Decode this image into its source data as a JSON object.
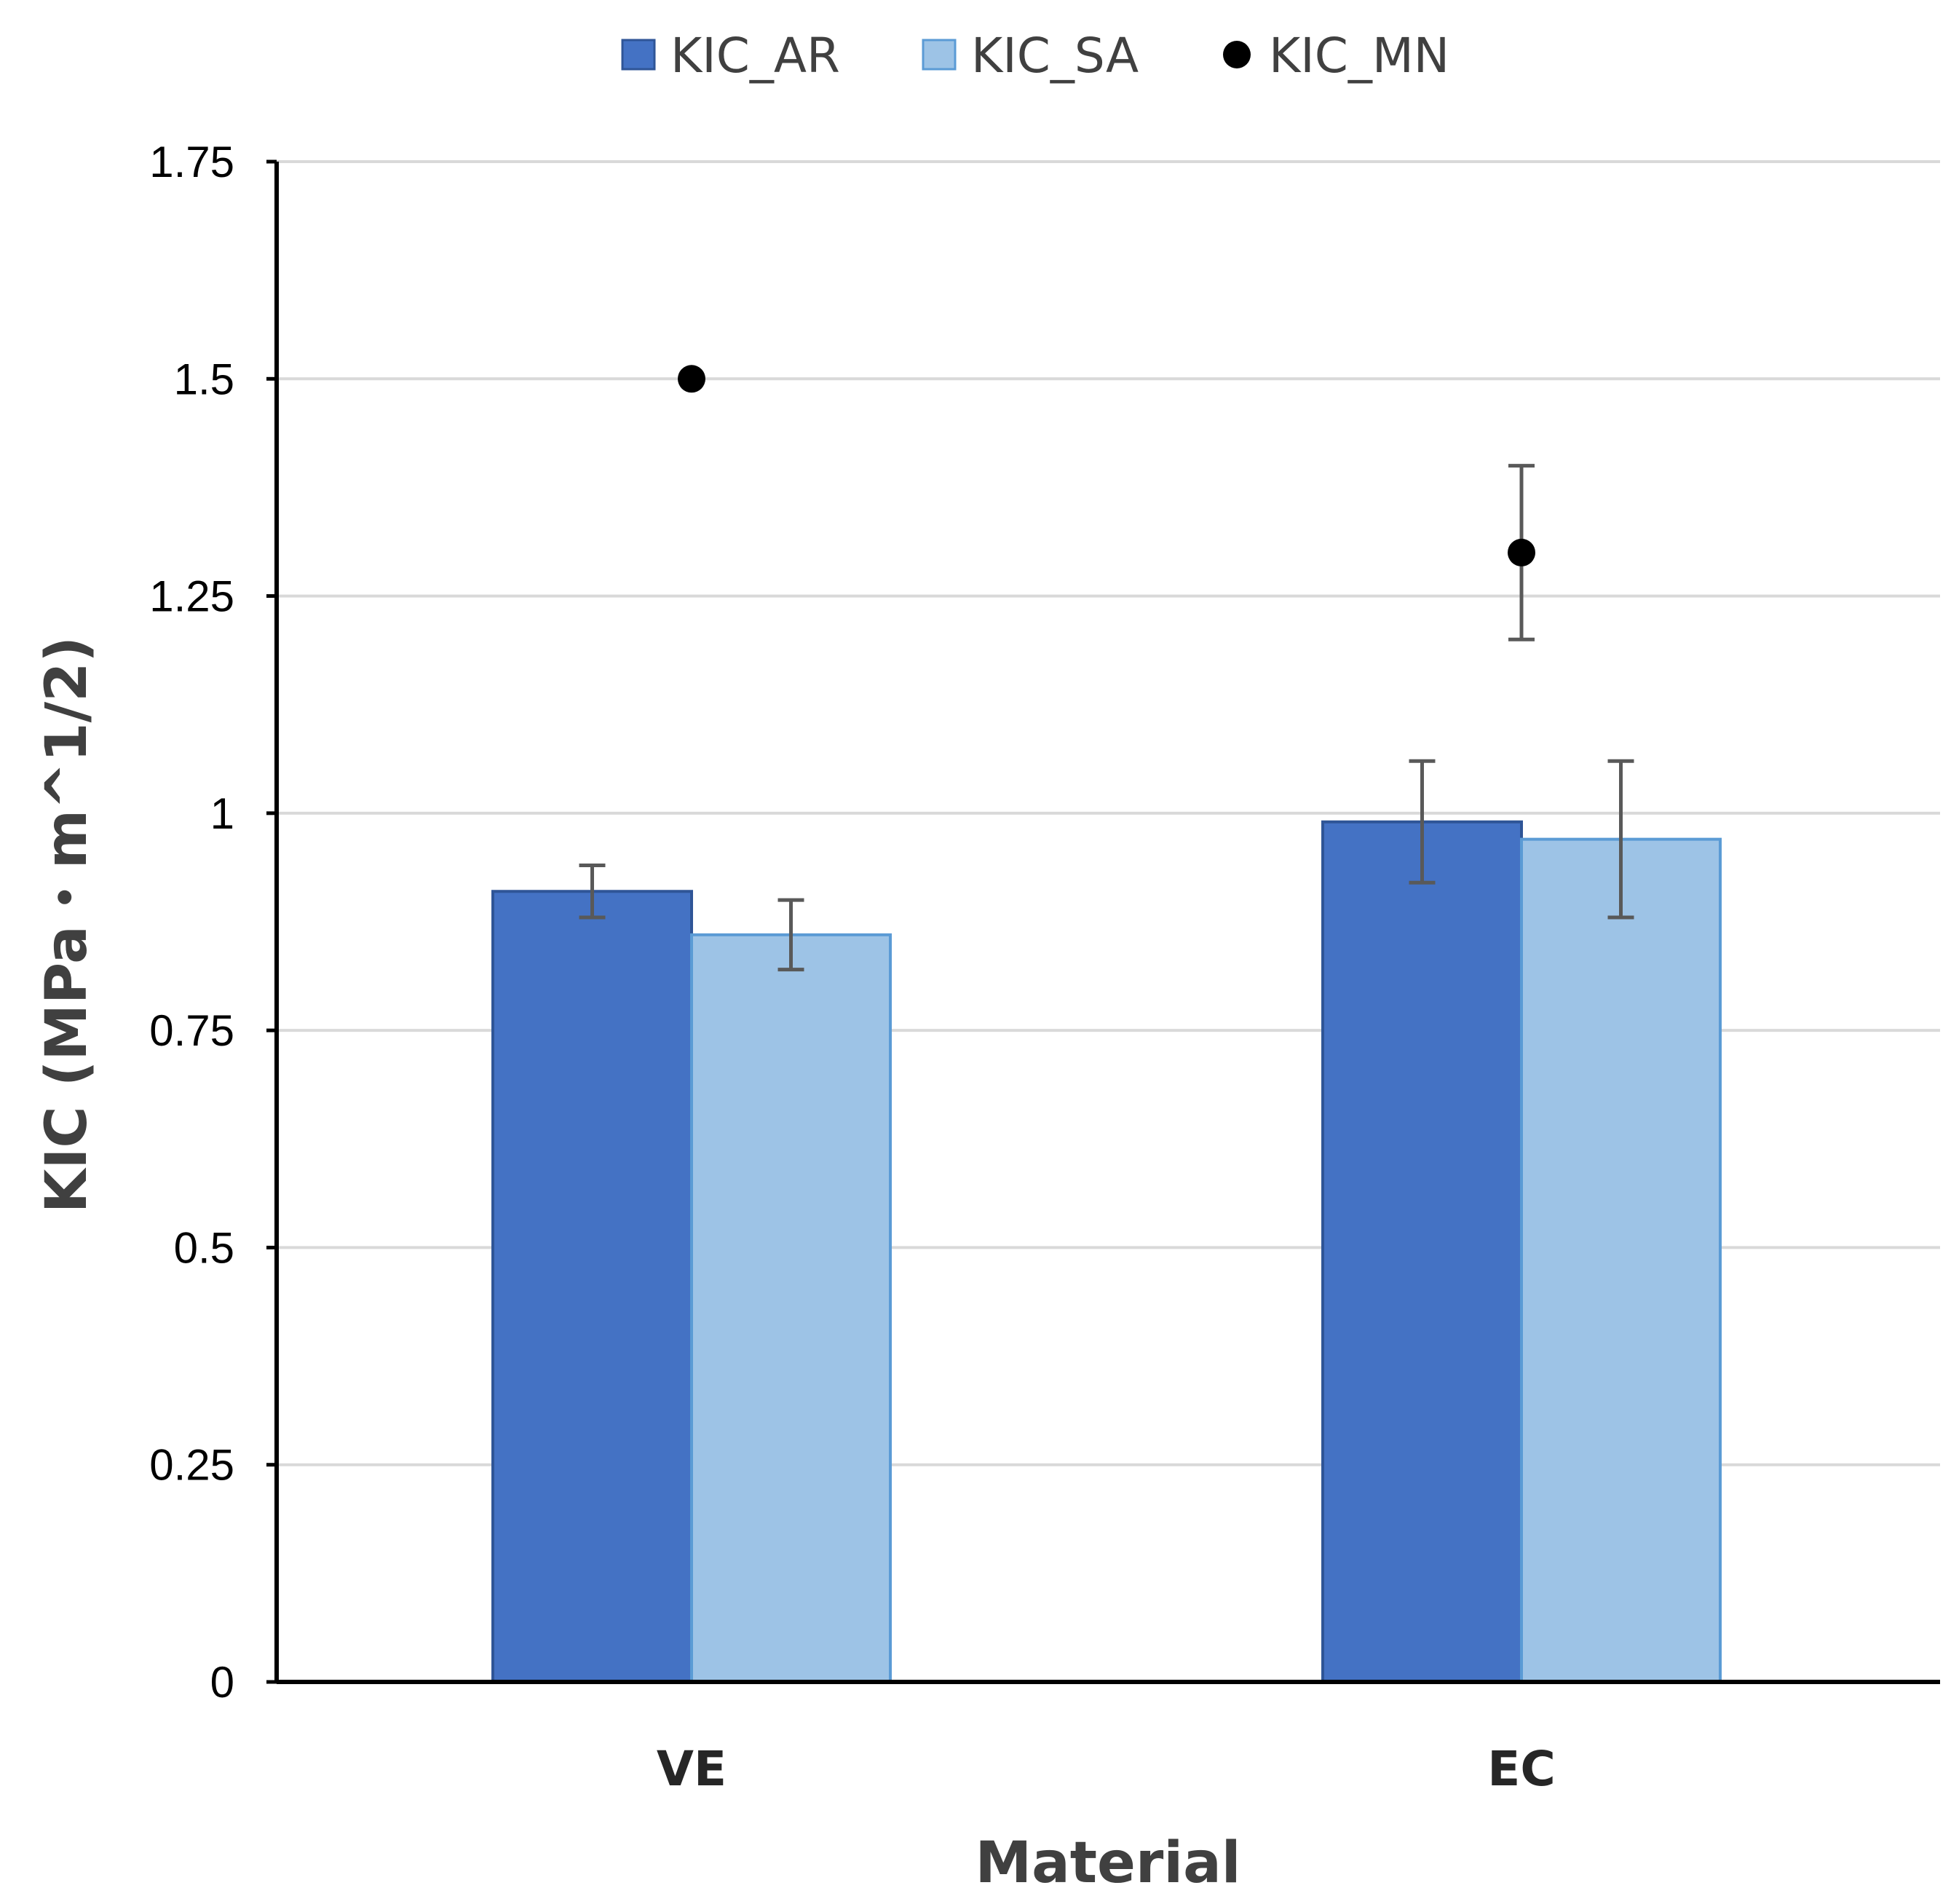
{
  "chart_data": {
    "type": "bar",
    "categories": [
      "VE",
      "EC"
    ],
    "series": [
      {
        "name": "KIC_AR",
        "kind": "bar",
        "color": "#4472C4",
        "border": "#2F5597",
        "values": [
          0.91,
          0.99
        ],
        "error": [
          0.03,
          0.07
        ]
      },
      {
        "name": "KIC_SA",
        "kind": "bar",
        "color": "#9DC3E6",
        "border": "#5B9BD5",
        "values": [
          0.86,
          0.97
        ],
        "error": [
          0.04,
          0.09
        ]
      },
      {
        "name": "KIC_MN",
        "kind": "point",
        "color": "#000000",
        "values": [
          1.5,
          1.3
        ],
        "error": [
          0,
          0.1
        ]
      }
    ],
    "title": "",
    "xlabel": "Material",
    "ylabel": "KIC (MPa・m^1/2)",
    "ylim": [
      0,
      1.75
    ],
    "yticks": [
      0,
      0.25,
      0.5,
      0.75,
      1,
      1.25,
      1.5,
      1.75
    ],
    "ytick_labels": [
      "0",
      "0.25",
      "0.5",
      "0.75",
      "1",
      "1.25",
      "1.5",
      "1.75"
    ],
    "grid": true,
    "legend_position": "top"
  }
}
